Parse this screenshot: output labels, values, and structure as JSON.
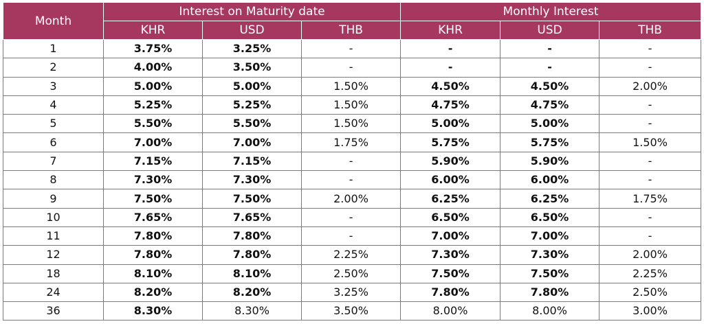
{
  "header": {
    "month": "Month",
    "group_maturity": "Interest on Maturity date",
    "group_monthly": "Monthly Interest",
    "columns": [
      "KHR",
      "USD",
      "THB",
      "KHR",
      "USD",
      "THB"
    ]
  },
  "rows": [
    {
      "month": "1",
      "mat_khr": "3.75%",
      "mat_usd": "3.25%",
      "mat_thb": "-",
      "mon_khr": "-",
      "mon_usd": "-",
      "mon_thb": "-"
    },
    {
      "month": "2",
      "mat_khr": "4.00%",
      "mat_usd": "3.50%",
      "mat_thb": "-",
      "mon_khr": "-",
      "mon_usd": "-",
      "mon_thb": "-"
    },
    {
      "month": "3",
      "mat_khr": "5.00%",
      "mat_usd": "5.00%",
      "mat_thb": "1.50%",
      "mon_khr": "4.50%",
      "mon_usd": "4.50%",
      "mon_thb": "2.00%"
    },
    {
      "month": "4",
      "mat_khr": "5.25%",
      "mat_usd": "5.25%",
      "mat_thb": "1.50%",
      "mon_khr": "4.75%",
      "mon_usd": "4.75%",
      "mon_thb": "-"
    },
    {
      "month": "5",
      "mat_khr": "5.50%",
      "mat_usd": "5.50%",
      "mat_thb": "1.50%",
      "mon_khr": "5.00%",
      "mon_usd": "5.00%",
      "mon_thb": "-"
    },
    {
      "month": "6",
      "mat_khr": "7.00%",
      "mat_usd": "7.00%",
      "mat_thb": "1.75%",
      "mon_khr": "5.75%",
      "mon_usd": "5.75%",
      "mon_thb": "1.50%"
    },
    {
      "month": "7",
      "mat_khr": "7.15%",
      "mat_usd": "7.15%",
      "mat_thb": "-",
      "mon_khr": "5.90%",
      "mon_usd": "5.90%",
      "mon_thb": "-"
    },
    {
      "month": "8",
      "mat_khr": "7.30%",
      "mat_usd": "7.30%",
      "mat_thb": "-",
      "mon_khr": "6.00%",
      "mon_usd": "6.00%",
      "mon_thb": "-"
    },
    {
      "month": "9",
      "mat_khr": "7.50%",
      "mat_usd": "7.50%",
      "mat_thb": "2.00%",
      "mon_khr": "6.25%",
      "mon_usd": "6.25%",
      "mon_thb": "1.75%"
    },
    {
      "month": "10",
      "mat_khr": "7.65%",
      "mat_usd": "7.65%",
      "mat_thb": "-",
      "mon_khr": "6.50%",
      "mon_usd": "6.50%",
      "mon_thb": "-"
    },
    {
      "month": "11",
      "mat_khr": "7.80%",
      "mat_usd": "7.80%",
      "mat_thb": "-",
      "mon_khr": "7.00%",
      "mon_usd": "7.00%",
      "mon_thb": "-"
    },
    {
      "month": "12",
      "mat_khr": "7.80%",
      "mat_usd": "7.80%",
      "mat_thb": "2.25%",
      "mon_khr": "7.30%",
      "mon_usd": "7.30%",
      "mon_thb": "2.00%"
    },
    {
      "month": "18",
      "mat_khr": "8.10%",
      "mat_usd": "8.10%",
      "mat_thb": "2.50%",
      "mon_khr": "7.50%",
      "mon_usd": "7.50%",
      "mon_thb": "2.25%"
    },
    {
      "month": "24",
      "mat_khr": "8.20%",
      "mat_usd": "8.20%",
      "mat_thb": "3.25%",
      "mon_khr": "7.80%",
      "mon_usd": "7.80%",
      "mon_thb": "2.50%"
    },
    {
      "month": "36",
      "mat_khr": "8.30%",
      "mat_usd": "8.30%",
      "mat_thb": "3.50%",
      "mon_khr": "8.00%",
      "mon_usd": "8.00%",
      "mon_thb": "3.00%"
    }
  ]
}
